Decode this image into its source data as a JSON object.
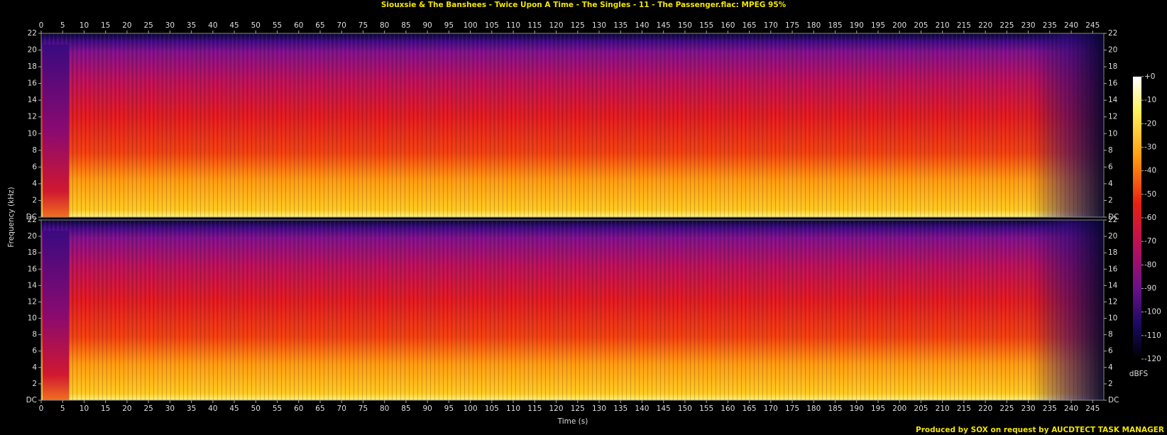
{
  "chart_data": {
    "type": "spectrogram",
    "title": "Siouxsie & The Banshees - Twice Upon A Time - The Singles - 11 - The Passenger.flac: MPEG 95%",
    "x_label": "Time (s)",
    "y_label": "Frequency (kHz)",
    "colorbar_label": "dBFS",
    "footer": "Produced by SOX on request by AUCDTECT TASK MANAGER",
    "xlim": [
      0,
      247.6
    ],
    "xticks": [
      0,
      5,
      10,
      15,
      20,
      25,
      30,
      35,
      40,
      45,
      50,
      55,
      60,
      65,
      70,
      75,
      80,
      85,
      90,
      95,
      100,
      105,
      110,
      115,
      120,
      125,
      130,
      135,
      140,
      145,
      150,
      155,
      160,
      165,
      170,
      175,
      180,
      185,
      190,
      195,
      200,
      205,
      210,
      215,
      220,
      225,
      230,
      235,
      240,
      245
    ],
    "ylim": [
      0,
      22
    ],
    "yticks": [
      {
        "value": 0,
        "label": "DC"
      },
      2,
      4,
      6,
      8,
      10,
      12,
      14,
      16,
      18,
      20,
      22
    ],
    "zlim": [
      -120,
      0
    ],
    "zticks": [
      {
        "value": 0,
        "label": "+0"
      },
      -10,
      -20,
      -30,
      -40,
      -50,
      -60,
      -70,
      -80,
      -90,
      -100,
      -110,
      -120
    ]
  }
}
